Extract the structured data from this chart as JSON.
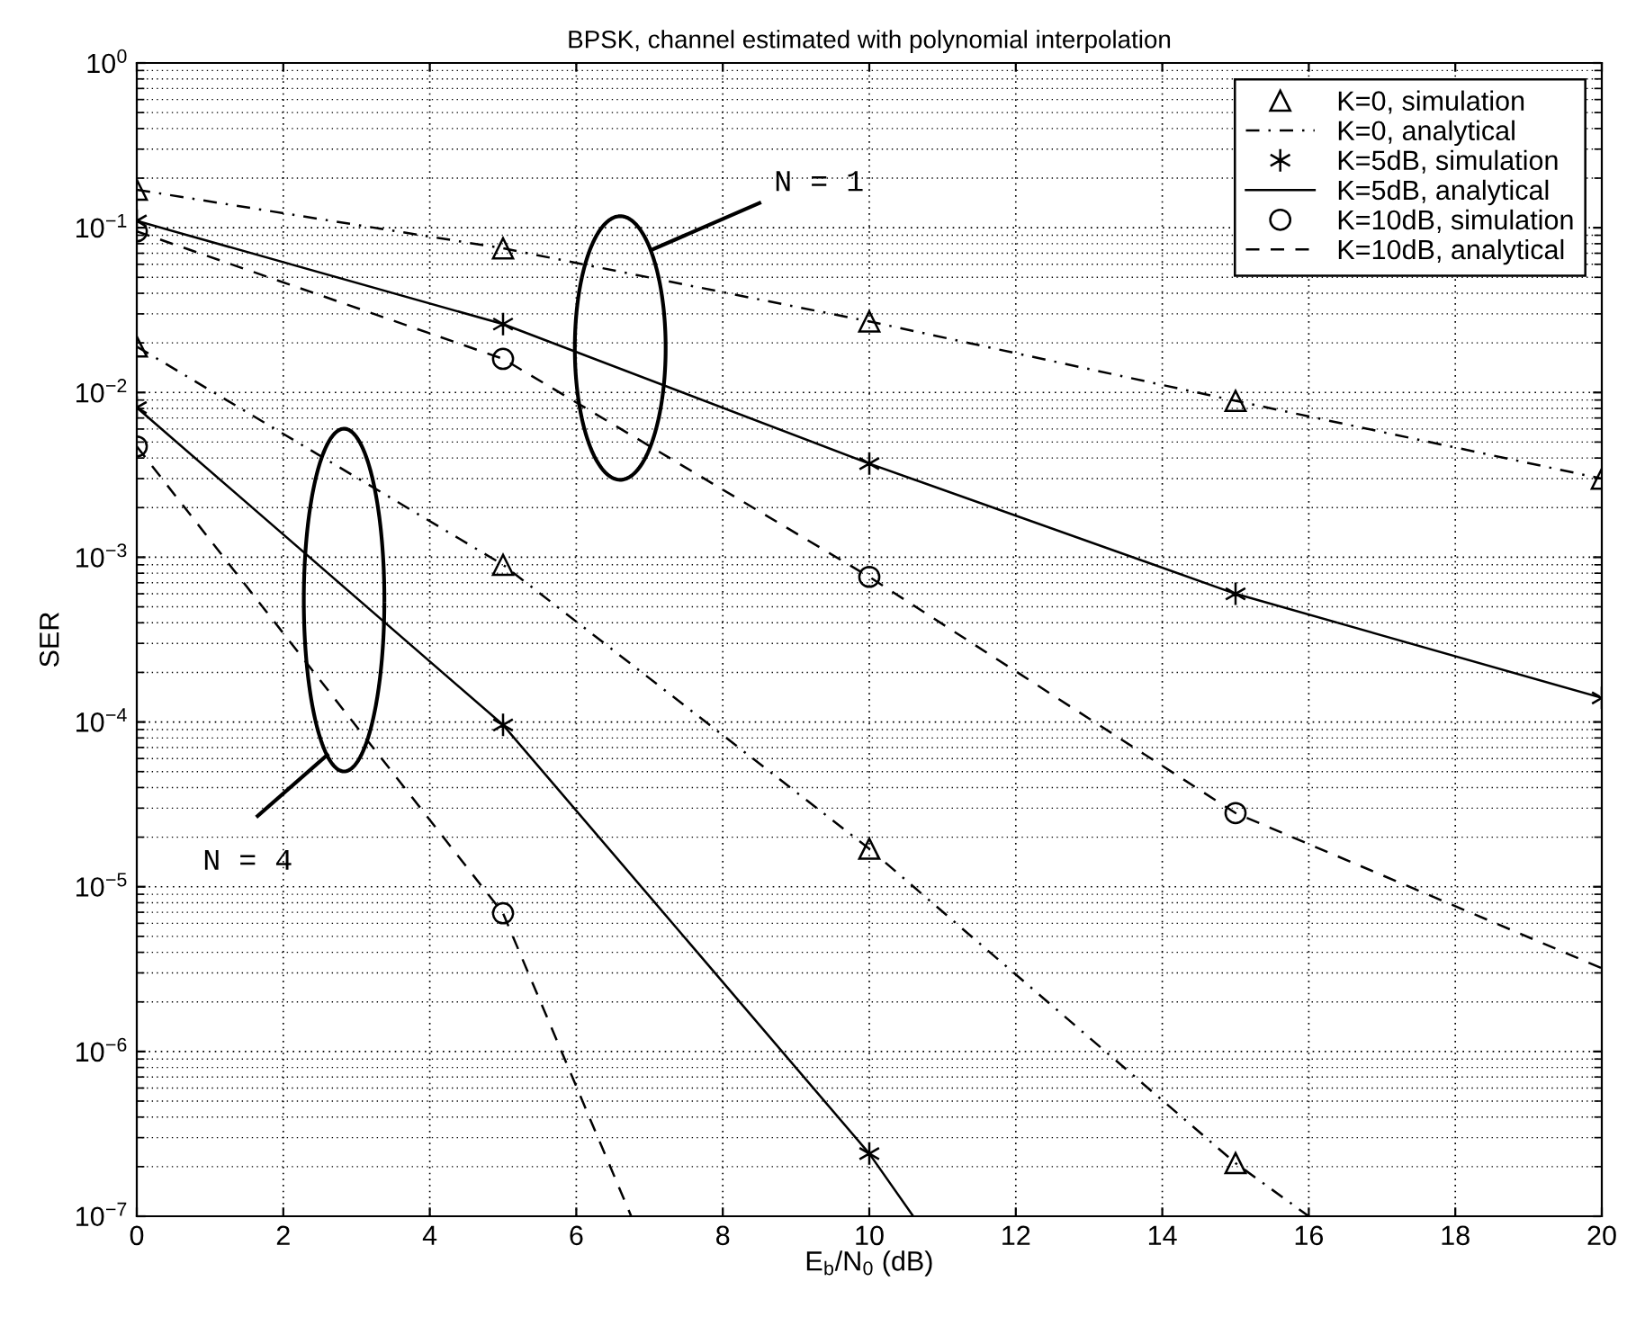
{
  "chart_data": {
    "type": "line",
    "title": "BPSK, channel estimated with polynomial interpolation",
    "xlabel": "E$_{b}$/N$_{0}$ (dB)",
    "ylabel": "SER",
    "xlim": [
      0,
      20
    ],
    "xticks": [
      0,
      2,
      4,
      6,
      8,
      10,
      12,
      14,
      16,
      18,
      20
    ],
    "ylim": [
      1e-07,
      1
    ],
    "log": "y",
    "yticks": [
      {
        "value": 1e-07,
        "label": "10$^{−7}$"
      },
      {
        "value": 1e-06,
        "label": "10$^{−6}$"
      },
      {
        "value": 1e-05,
        "label": "10$^{−5}$"
      },
      {
        "value": 0.0001,
        "label": "10$^{−4}$"
      },
      {
        "value": 0.001,
        "label": "10$^{−3}$"
      },
      {
        "value": 0.01,
        "label": "10$^{−2}$"
      },
      {
        "value": 0.1,
        "label": "10$^{−1}$"
      },
      {
        "value": 1,
        "label": "10$^{0}$"
      }
    ],
    "grid": true,
    "legend": "top right",
    "annotations": [
      "N = 1",
      "N = 4"
    ],
    "series": [
      {
        "name": "K=0, simulation",
        "type": "scatter",
        "marker": "triangle",
        "color": "#000000",
        "x": [
          0,
          5,
          10,
          15,
          20
        ],
        "values": [
          0.17,
          0.075,
          0.027,
          0.0089,
          0.003
        ]
      },
      {
        "name": "K=0, analytical",
        "type": "line",
        "line_style": "dashdot",
        "color": "#000000",
        "x": [
          0,
          5,
          10,
          15,
          20
        ],
        "values": [
          0.17,
          0.075,
          0.027,
          0.0089,
          0.003
        ]
      },
      {
        "name": "K=5dB, simulation",
        "type": "scatter",
        "marker": "cross",
        "color": "#000000",
        "x": [
          0,
          5,
          10,
          15,
          20
        ],
        "values": [
          0.11,
          0.026,
          0.0037,
          0.0006,
          0.00014
        ]
      },
      {
        "name": "K=5dB, analytical",
        "type": "line",
        "line_style": "solid",
        "color": "#000000",
        "x": [
          0,
          5,
          10,
          15,
          20
        ],
        "values": [
          0.11,
          0.026,
          0.0037,
          0.0006,
          0.00014
        ]
      },
      {
        "name": "K=10dB, simulation",
        "type": "scatter",
        "marker": "circle",
        "color": "#000000",
        "x": [
          0,
          5,
          10,
          15
        ],
        "values": [
          0.095,
          0.016,
          0.00076,
          2.8e-05
        ]
      },
      {
        "name": "K=10dB, analytical",
        "type": "line",
        "line_style": "dashed",
        "color": "#000000",
        "x": [
          0,
          5,
          10,
          15,
          20
        ],
        "values": [
          0.095,
          0.016,
          0.00076,
          2.8e-05,
          3.2e-06
        ]
      },
      {
        "type": "scatter",
        "marker": "triangle",
        "color": "#000000",
        "x": [
          0,
          5,
          10,
          15
        ],
        "values": [
          0.019,
          0.0009,
          1.7e-05,
          2.1e-07
        ]
      },
      {
        "type": "line",
        "line_style": "dashdot",
        "color": "#000000",
        "x": [
          0,
          5,
          10,
          15,
          16
        ],
        "values": [
          0.019,
          0.0009,
          1.7e-05,
          2.1e-07,
          1e-07
        ]
      },
      {
        "type": "scatter",
        "marker": "cross",
        "color": "#000000",
        "x": [
          0,
          5,
          10
        ],
        "values": [
          0.0081,
          9.6e-05,
          2.4e-07
        ]
      },
      {
        "type": "line",
        "line_style": "solid",
        "color": "#000000",
        "x": [
          0,
          5,
          10,
          10.6
        ],
        "values": [
          0.0081,
          9.6e-05,
          2.4e-07,
          1e-07
        ]
      },
      {
        "type": "scatter",
        "marker": "circle",
        "color": "#000000",
        "x": [
          0,
          5
        ],
        "values": [
          0.0047,
          6.9e-06
        ]
      },
      {
        "type": "line",
        "line_style": "dashed",
        "color": "#000000",
        "x": [
          0,
          5,
          6.75
        ],
        "values": [
          0.0047,
          6.9e-06,
          1e-07
        ]
      }
    ]
  }
}
